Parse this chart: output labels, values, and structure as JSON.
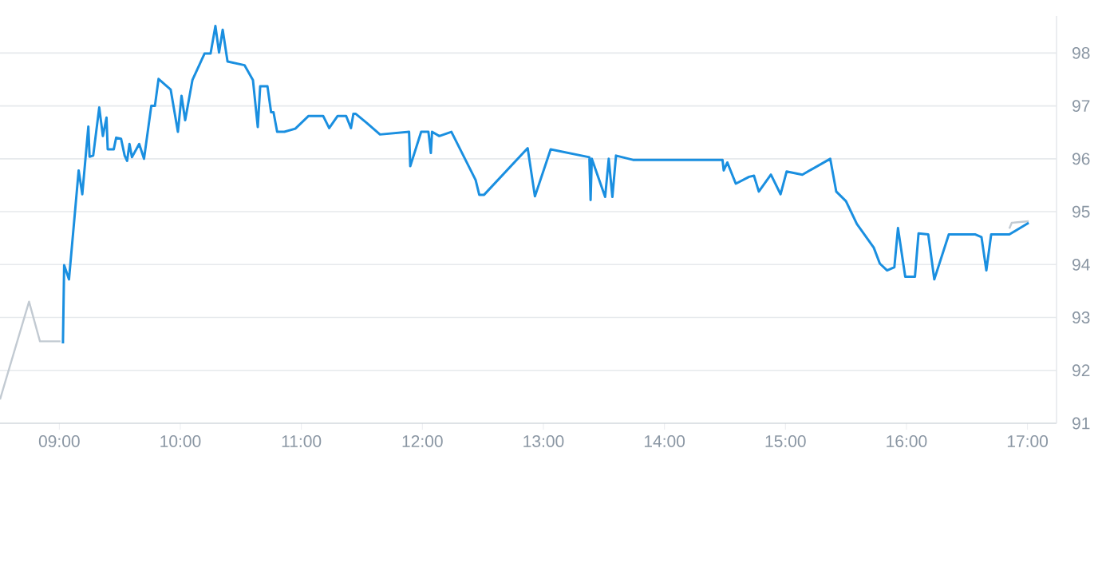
{
  "chart_data": {
    "type": "line",
    "grid": "y",
    "xlim": [
      8.51,
      17.24
    ],
    "ylim": [
      91,
      98.7
    ],
    "xticks": [
      {
        "value": 9,
        "label": "09:00"
      },
      {
        "value": 10,
        "label": "10:00"
      },
      {
        "value": 11,
        "label": "11:00"
      },
      {
        "value": 12,
        "label": "12:00"
      },
      {
        "value": 13,
        "label": "13:00"
      },
      {
        "value": 14,
        "label": "14:00"
      },
      {
        "value": 15,
        "label": "15:00"
      },
      {
        "value": 16,
        "label": "16:00"
      },
      {
        "value": 17,
        "label": "17:00"
      }
    ],
    "yticks": [
      91,
      92,
      93,
      94,
      95,
      96,
      97,
      98
    ],
    "series": [
      {
        "color": "#c2cad2",
        "x": [
          8.51,
          8.75,
          8.84,
          9.01,
          12.0,
          16.85,
          16.87,
          17.01
        ],
        "values": [
          91.45,
          93.3,
          92.55,
          92.55,
          null,
          94.68,
          94.79,
          94.82
        ]
      },
      {
        "color": "#1a8fe0",
        "x": [
          9.03,
          9.04,
          9.08,
          9.16,
          9.19,
          9.24,
          9.25,
          9.28,
          9.33,
          9.36,
          9.39,
          9.4,
          9.45,
          9.47,
          9.51,
          9.54,
          9.56,
          9.58,
          9.6,
          9.66,
          9.7,
          9.76,
          9.79,
          9.82,
          9.92,
          9.98,
          10.01,
          10.04,
          10.1,
          10.16,
          10.2,
          10.25,
          10.29,
          10.32,
          10.35,
          10.39,
          10.53,
          10.6,
          10.64,
          10.66,
          10.72,
          10.75,
          10.77,
          10.8,
          10.86,
          10.95,
          11.06,
          11.18,
          11.23,
          11.3,
          11.37,
          11.41,
          11.43,
          11.45,
          11.54,
          11.65,
          11.89,
          11.9,
          11.99,
          12.05,
          12.07,
          12.08,
          12.14,
          12.24,
          12.44,
          12.47,
          12.51,
          12.87,
          12.93,
          13.06,
          13.38,
          13.39,
          13.4,
          13.51,
          13.54,
          13.57,
          13.6,
          13.74,
          14.48,
          14.49,
          14.52,
          14.59,
          14.7,
          14.74,
          14.78,
          14.88,
          14.96,
          15.01,
          15.14,
          15.37,
          15.42,
          15.5,
          15.59,
          15.73,
          15.78,
          15.84,
          15.9,
          15.93,
          15.99,
          16.07,
          16.1,
          16.18,
          16.23,
          16.35,
          16.57,
          16.62,
          16.66,
          16.7,
          16.85,
          17.01
        ],
        "values": [
          92.51,
          93.99,
          93.72,
          95.78,
          95.33,
          96.61,
          96.04,
          96.06,
          96.97,
          96.43,
          96.78,
          96.18,
          96.18,
          96.4,
          96.38,
          96.06,
          95.96,
          96.28,
          96.03,
          96.28,
          96.0,
          97.0,
          97.0,
          97.51,
          97.31,
          96.51,
          97.19,
          96.73,
          97.49,
          97.79,
          97.99,
          97.99,
          98.51,
          98.01,
          98.44,
          97.84,
          97.77,
          97.49,
          96.6,
          97.37,
          97.37,
          96.88,
          96.88,
          96.51,
          96.51,
          96.57,
          96.81,
          96.81,
          96.58,
          96.81,
          96.81,
          96.58,
          96.85,
          96.85,
          96.68,
          96.46,
          96.51,
          95.86,
          96.51,
          96.51,
          96.11,
          96.51,
          96.43,
          96.51,
          95.6,
          95.32,
          95.32,
          96.2,
          95.29,
          96.18,
          96.03,
          95.22,
          96.0,
          95.28,
          96.0,
          95.28,
          96.06,
          95.98,
          95.98,
          95.78,
          95.93,
          95.53,
          95.66,
          95.68,
          95.38,
          95.7,
          95.33,
          95.76,
          95.7,
          96.0,
          95.38,
          95.2,
          94.77,
          94.32,
          94.02,
          93.89,
          93.95,
          94.69,
          93.77,
          93.77,
          94.59,
          94.57,
          93.72,
          94.57,
          94.57,
          94.52,
          93.89,
          94.57,
          94.57,
          94.79
        ]
      }
    ]
  }
}
